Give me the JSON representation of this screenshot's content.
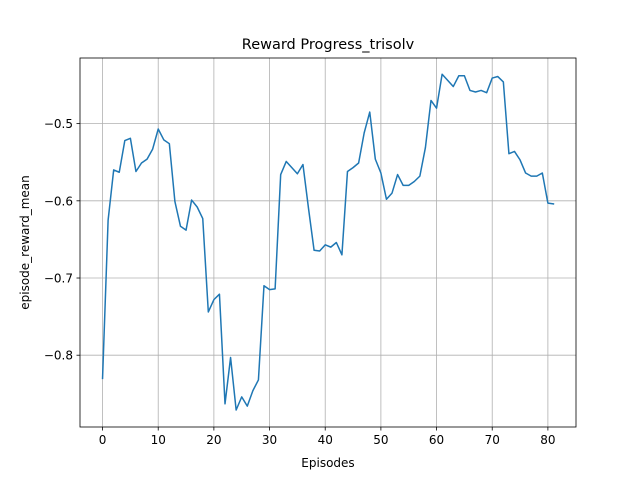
{
  "chart_data": {
    "type": "line",
    "title": "Reward Progress_trisolv",
    "xlabel": "Episodes",
    "ylabel": "episode_reward_mean",
    "xlim": [
      -4.05,
      85.05
    ],
    "ylim": [
      -0.893,
      -0.415
    ],
    "xticks": [
      0,
      10,
      20,
      30,
      40,
      50,
      60,
      70,
      80
    ],
    "yticks": [
      -0.8,
      -0.7,
      -0.6,
      -0.5
    ],
    "ytick_labels": [
      "−0.8",
      "−0.7",
      "−0.6",
      "−0.5"
    ],
    "grid": true,
    "line_color": "#1f77b4",
    "series": [
      {
        "x": [
          0,
          1,
          2,
          3,
          4,
          5,
          6,
          7,
          8,
          9,
          10,
          11,
          12,
          13,
          14,
          15,
          16,
          17,
          18,
          19,
          20,
          21,
          22,
          23,
          24,
          25,
          26,
          27,
          28,
          29,
          30,
          31,
          32,
          33,
          34,
          35,
          36,
          37,
          38,
          39,
          40,
          41,
          42,
          43,
          44,
          45,
          46,
          47,
          48,
          49,
          50,
          51,
          52,
          53,
          54,
          55,
          56,
          57,
          58,
          59,
          60,
          61,
          62,
          63,
          64,
          65,
          66,
          67,
          68,
          69,
          70,
          71,
          72,
          73,
          74,
          75,
          76,
          77,
          78,
          79,
          80,
          81
        ],
        "values": [
          -0.83,
          -0.625,
          -0.56,
          -0.563,
          -0.522,
          -0.519,
          -0.562,
          -0.551,
          -0.546,
          -0.533,
          -0.507,
          -0.521,
          -0.526,
          -0.601,
          -0.633,
          -0.638,
          -0.599,
          -0.608,
          -0.623,
          -0.744,
          -0.728,
          -0.721,
          -0.863,
          -0.803,
          -0.871,
          -0.854,
          -0.866,
          -0.846,
          -0.832,
          -0.71,
          -0.715,
          -0.714,
          -0.566,
          -0.549,
          -0.557,
          -0.565,
          -0.553,
          -0.61,
          -0.664,
          -0.665,
          -0.657,
          -0.66,
          -0.654,
          -0.67,
          -0.562,
          -0.557,
          -0.551,
          -0.512,
          -0.485,
          -0.546,
          -0.564,
          -0.598,
          -0.59,
          -0.566,
          -0.58,
          -0.58,
          -0.575,
          -0.568,
          -0.531,
          -0.47,
          -0.48,
          -0.436,
          -0.444,
          -0.452,
          -0.438,
          -0.438,
          -0.457,
          -0.459,
          -0.457,
          -0.46,
          -0.441,
          -0.439,
          -0.446,
          -0.539,
          -0.536,
          -0.547,
          -0.564,
          -0.568,
          -0.568,
          -0.564,
          -0.603,
          -0.604
        ]
      }
    ]
  }
}
